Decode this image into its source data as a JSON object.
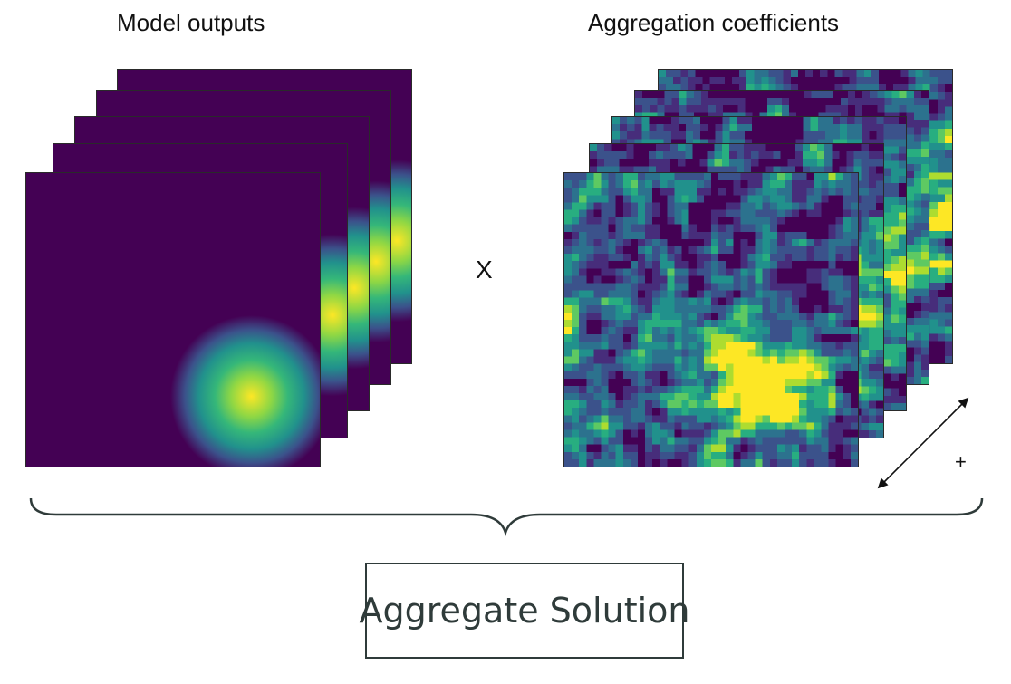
{
  "labels": {
    "left_title": "Model outputs",
    "right_title": "Aggregation coefficients",
    "multiply": "X",
    "plus": "+",
    "result": "Aggregate Solution"
  },
  "colors": {
    "viridis_dark": "#440154",
    "viridis_blue": "#31688e",
    "viridis_teal": "#21918c",
    "viridis_green": "#35b779",
    "viridis_yellow": "#fde725",
    "brace": "#2f3b3a"
  },
  "icons": [
    "double-arrow-icon",
    "curly-brace-icon"
  ]
}
